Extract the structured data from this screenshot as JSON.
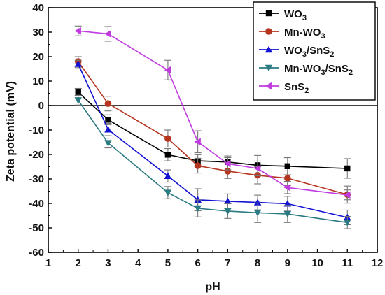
{
  "chart_data": {
    "type": "line",
    "title": "",
    "xlabel": "pH",
    "ylabel": "Zeta potential (mV)",
    "xlim": [
      1,
      12
    ],
    "ylim": [
      -60,
      40
    ],
    "xticks": [
      1,
      2,
      3,
      4,
      5,
      6,
      7,
      8,
      9,
      10,
      11,
      12
    ],
    "yticks": [
      -60,
      -50,
      -40,
      -30,
      -20,
      -10,
      0,
      10,
      20,
      30,
      40
    ],
    "zero_line": true,
    "grid": false,
    "legend_position": "top-right",
    "series": [
      {
        "name": "WO3",
        "legend": [
          {
            "t": "WO",
            "sub": false
          },
          {
            "t": "3",
            "sub": true
          }
        ],
        "color": "#000000",
        "marker": "square",
        "x": [
          2,
          3,
          5,
          6,
          7,
          8,
          9,
          11
        ],
        "y": [
          5.5,
          -5.8,
          -20.1,
          -22.6,
          -23.1,
          -24.4,
          -24.8,
          -25.7
        ],
        "err": [
          1.5,
          2.0,
          2.5,
          2.5,
          2.5,
          4.0,
          3.5,
          4.0
        ]
      },
      {
        "name": "Mn-WO3",
        "legend": [
          {
            "t": "Mn-WO",
            "sub": false
          },
          {
            "t": "3",
            "sub": true
          }
        ],
        "color": "#b5351f",
        "marker": "circle",
        "x": [
          2,
          3,
          5,
          6,
          7,
          8,
          9,
          11
        ],
        "y": [
          18,
          0.8,
          -13.5,
          -24.6,
          -26.8,
          -28.5,
          -29.7,
          -36.4
        ],
        "err": [
          2.0,
          3.0,
          3.5,
          3.0,
          3.0,
          3.5,
          3.0,
          3.5
        ]
      },
      {
        "name": "WO3/SnS2",
        "legend": [
          {
            "t": "WO",
            "sub": false
          },
          {
            "t": "3",
            "sub": true
          },
          {
            "t": "/SnS",
            "sub": false
          },
          {
            "t": "2",
            "sub": true
          }
        ],
        "color": "#1212d4",
        "marker": "triangle-up",
        "x": [
          2,
          3,
          5,
          6,
          7,
          8,
          9,
          11
        ],
        "y": [
          17,
          -9.8,
          -28.8,
          -38.5,
          -39.1,
          -39.6,
          -40.1,
          -45.7
        ],
        "err": [
          1.5,
          2.5,
          2.5,
          4.5,
          3.0,
          3.0,
          3.0,
          3.0
        ]
      },
      {
        "name": "Mn-WO3/SnS2",
        "legend": [
          {
            "t": "Mn-WO",
            "sub": false
          },
          {
            "t": "3",
            "sub": true
          },
          {
            "t": "/SnS",
            "sub": false
          },
          {
            "t": "2",
            "sub": true
          }
        ],
        "color": "#2a7a82",
        "marker": "triangle-down",
        "x": [
          2,
          3,
          5,
          6,
          7,
          8,
          9,
          11
        ],
        "y": [
          2.2,
          -15.3,
          -35.6,
          -42,
          -43.1,
          -43.8,
          -44.3,
          -47.8
        ],
        "err": [
          2.0,
          2.0,
          2.5,
          3.5,
          3.0,
          4.0,
          3.5,
          2.5
        ]
      },
      {
        "name": "SnS2",
        "legend": [
          {
            "t": "SnS",
            "sub": false
          },
          {
            "t": "2",
            "sub": true
          }
        ],
        "color": "#c03ce0",
        "marker": "triangle-left",
        "x": [
          2,
          3,
          5,
          6,
          7,
          8,
          9,
          11
        ],
        "y": [
          30.5,
          29.3,
          14.5,
          -14.8,
          -23.8,
          -25.7,
          -33.5,
          -36.5
        ],
        "err": [
          2.0,
          3.0,
          4.0,
          4.5,
          2.5,
          3.0,
          2.5,
          2.0
        ]
      }
    ]
  }
}
